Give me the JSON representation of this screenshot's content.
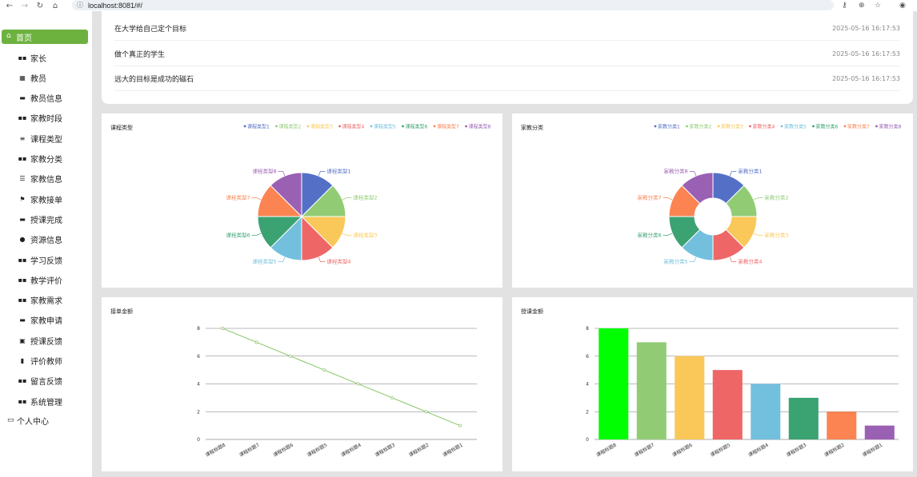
{
  "browser": {
    "url": "localhost:8081/#/"
  },
  "sidebar": {
    "home": "首页",
    "items": [
      {
        "label": "家长",
        "icon": "grid-icon"
      },
      {
        "label": "教员",
        "icon": "table-icon"
      },
      {
        "label": "教员信息",
        "icon": "briefcase-icon"
      },
      {
        "label": "家教时段",
        "icon": "grid-icon"
      },
      {
        "label": "课程类型",
        "icon": "sliders-icon"
      },
      {
        "label": "家教分类",
        "icon": "grid-icon"
      },
      {
        "label": "家教信息",
        "icon": "list-icon"
      },
      {
        "label": "家教接单",
        "icon": "flag-icon"
      },
      {
        "label": "授课完成",
        "icon": "message-icon"
      },
      {
        "label": "资源信息",
        "icon": "user-icon"
      },
      {
        "label": "学习反馈",
        "icon": "grid-icon"
      },
      {
        "label": "教学评价",
        "icon": "grid-icon"
      },
      {
        "label": "家教需求",
        "icon": "grid-icon"
      },
      {
        "label": "家教申请",
        "icon": "inbox-icon"
      },
      {
        "label": "授课反馈",
        "icon": "clipboard-icon"
      },
      {
        "label": "评价教师",
        "icon": "chart-icon"
      },
      {
        "label": "留言反馈",
        "icon": "grid-icon"
      },
      {
        "label": "系统管理",
        "icon": "grid-icon"
      }
    ],
    "personal": "个人中心"
  },
  "notices": [
    {
      "title": "在大学给自己定个目标",
      "date": "2025-05-16 16:17:53"
    },
    {
      "title": "做个真正的学生",
      "date": "2025-05-16 16:17:53"
    },
    {
      "title": "远大的目标是成功的磁石",
      "date": "2025-05-16 16:17:53"
    }
  ],
  "chart_data": [
    {
      "type": "pie",
      "title": "课程类型",
      "legend_position": "top-right",
      "categories": [
        "课程类型1",
        "课程类型2",
        "课程类型3",
        "课程类型4",
        "课程类型5",
        "课程类型6",
        "课程类型7",
        "课程类型8"
      ],
      "values": [
        1,
        1,
        1,
        1,
        1,
        1,
        1,
        1
      ],
      "colors": [
        "#5470c6",
        "#91cc75",
        "#fac858",
        "#ee6666",
        "#73c0de",
        "#3ba272",
        "#fc8452",
        "#9a60b4"
      ]
    },
    {
      "type": "pie",
      "variant": "donut",
      "title": "家教分类",
      "legend_position": "top-right",
      "categories": [
        "家教分类1",
        "家教分类2",
        "家教分类3",
        "家教分类4",
        "家教分类5",
        "家教分类6",
        "家教分类7",
        "家教分类8"
      ],
      "values": [
        1,
        1,
        1,
        1,
        1,
        1,
        1,
        1
      ],
      "colors": [
        "#5470c6",
        "#91cc75",
        "#fac858",
        "#ee6666",
        "#73c0de",
        "#3ba272",
        "#fc8452",
        "#9a60b4"
      ]
    },
    {
      "type": "line",
      "title": "接单金额",
      "categories": [
        "课程标题8",
        "课程标题7",
        "课程标题6",
        "课程标题5",
        "课程标题4",
        "课程标题3",
        "课程标题2",
        "课程标题1"
      ],
      "values": [
        8,
        7,
        6,
        5,
        4,
        3,
        2,
        1
      ],
      "ylim": [
        0,
        8
      ],
      "yticks": [
        0,
        2,
        4,
        6,
        8
      ],
      "color": "#91cc75"
    },
    {
      "type": "bar",
      "title": "授课金额",
      "categories": [
        "课程标题8",
        "课程标题7",
        "课程标题6",
        "课程标题5",
        "课程标题4",
        "课程标题3",
        "课程标题2",
        "课程标题1"
      ],
      "values": [
        8,
        7,
        6,
        5,
        4,
        3,
        2,
        1
      ],
      "ylim": [
        0,
        8
      ],
      "yticks": [
        0,
        2,
        4,
        6,
        8
      ],
      "colors": [
        "#00ff00",
        "#91cc75",
        "#fac858",
        "#ee6666",
        "#73c0de",
        "#3ba272",
        "#fc8452",
        "#9a60b4"
      ]
    }
  ]
}
